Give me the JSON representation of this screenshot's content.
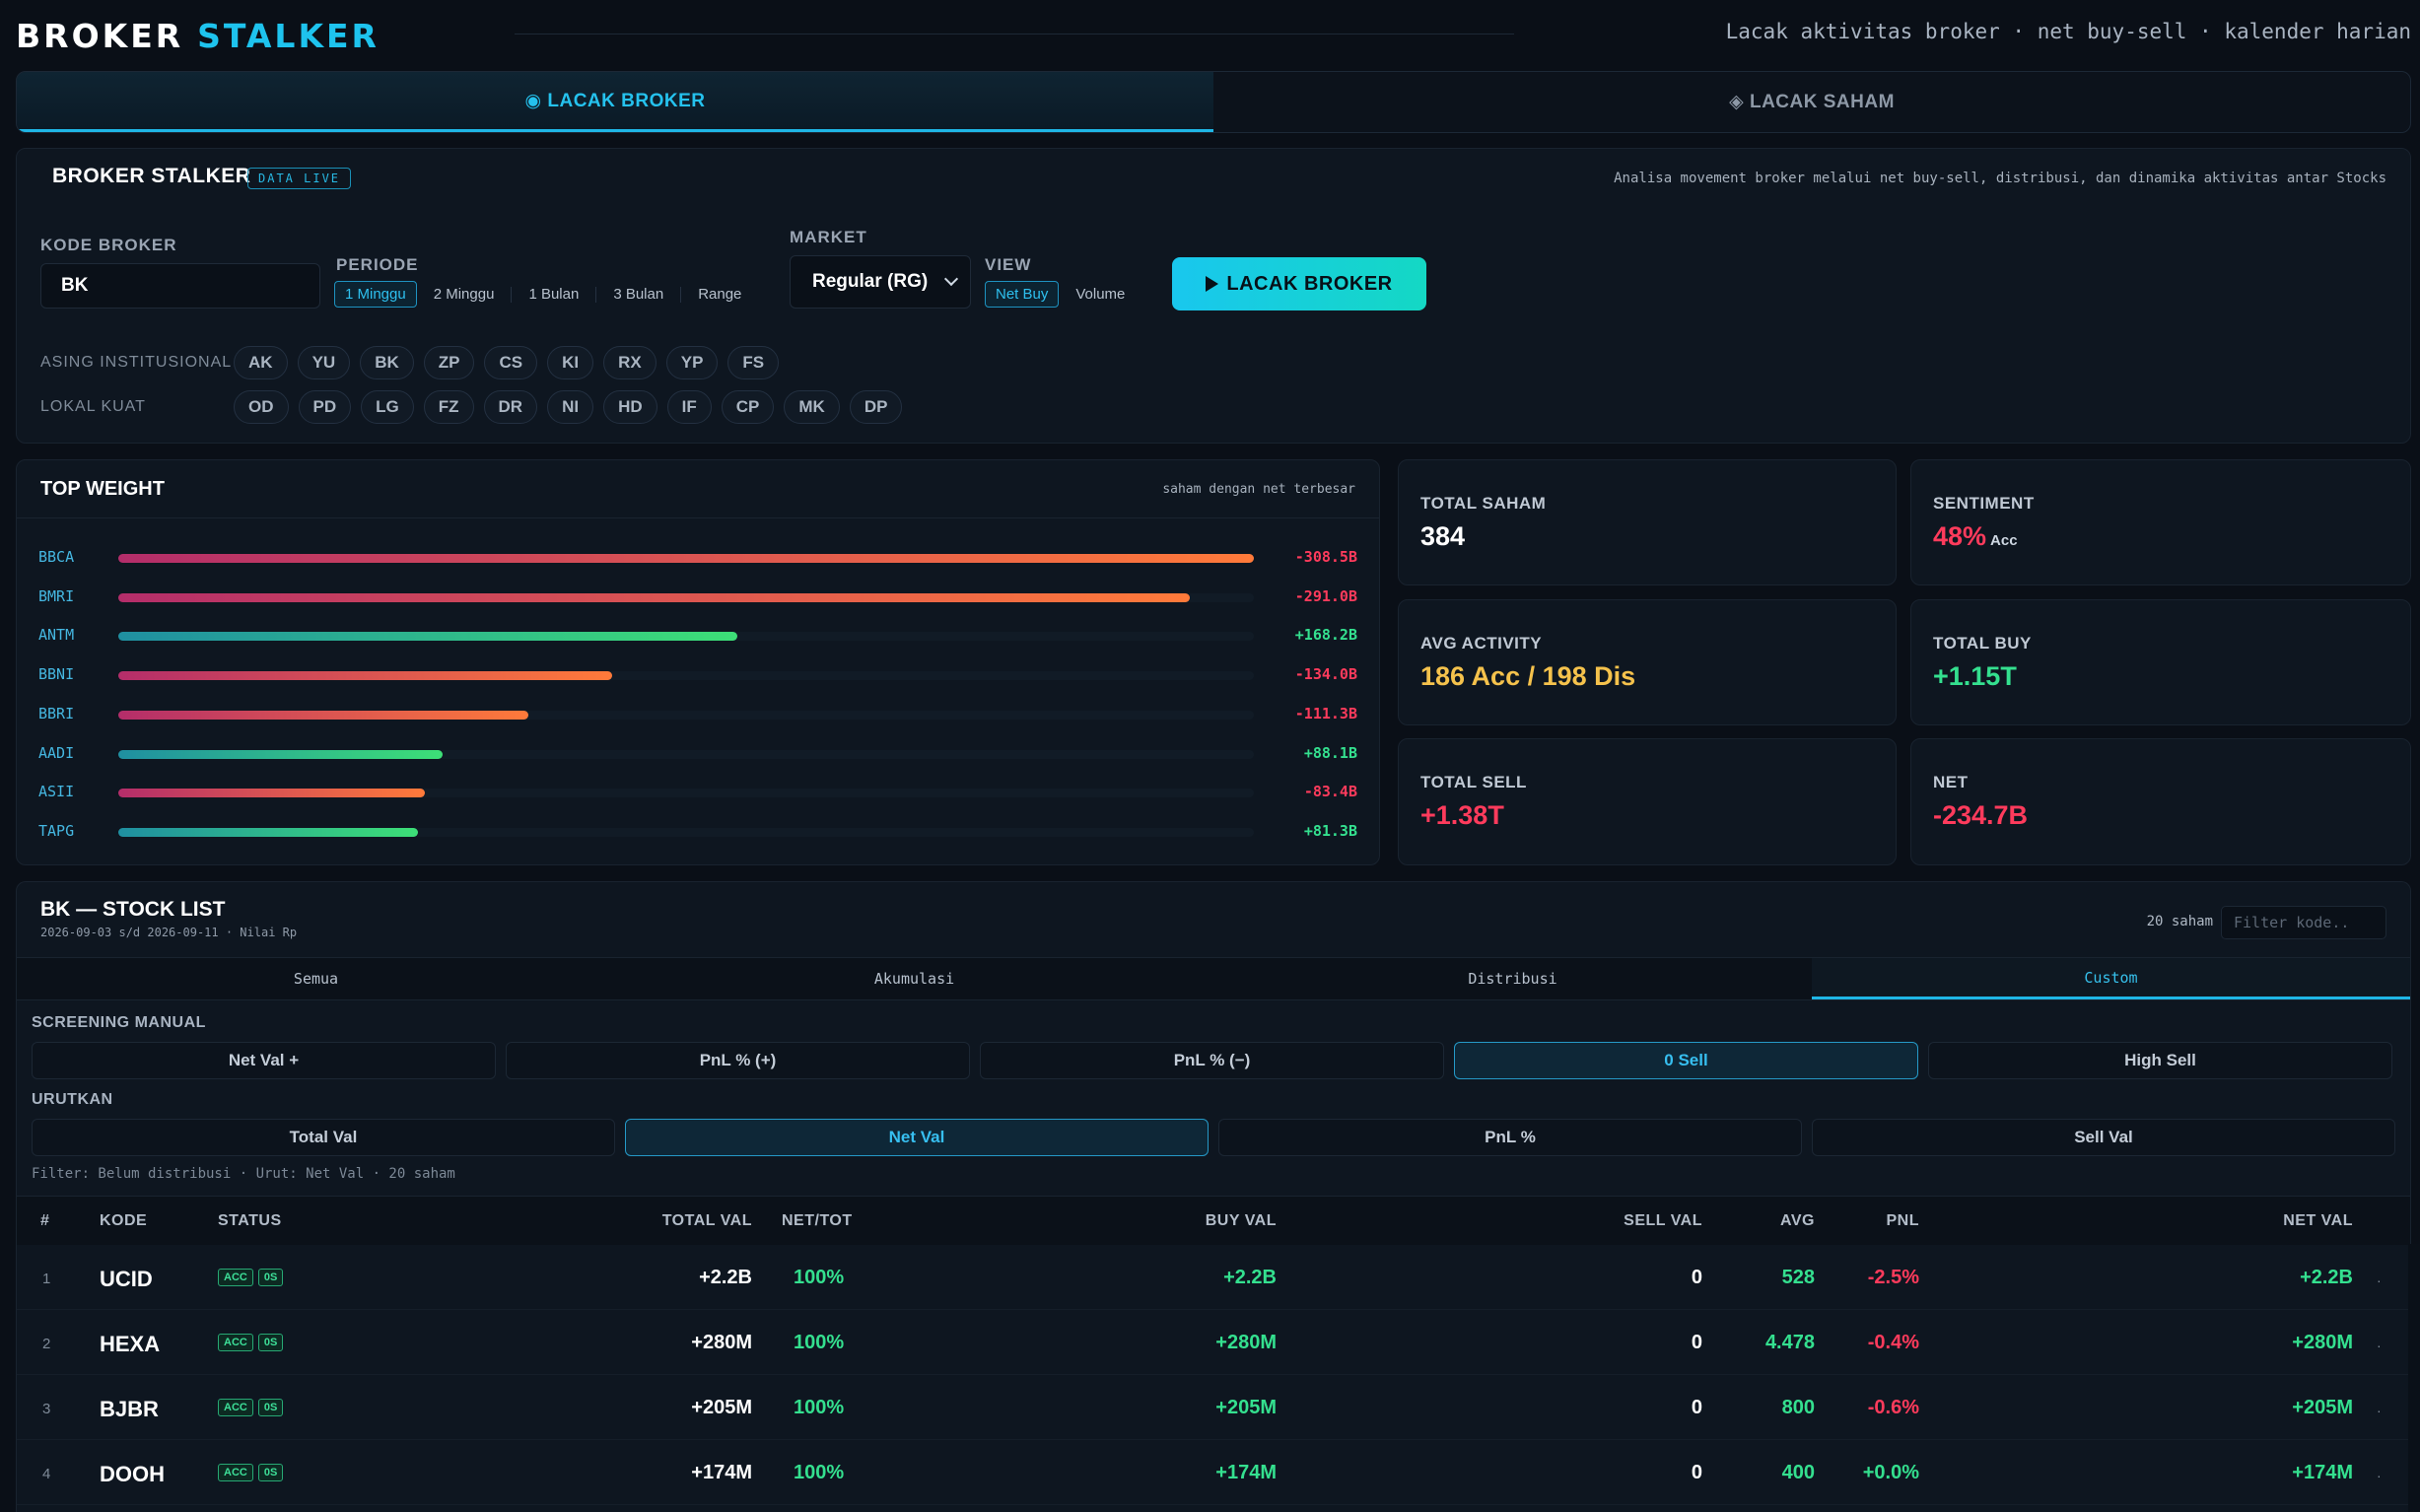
{
  "header": {
    "logo_part1": "BROKER",
    "logo_part2": "STALKER",
    "tagline": "Lacak aktivitas broker · net buy-sell · kalender harian"
  },
  "main_tabs": [
    {
      "label": "◉ LACAK BROKER",
      "active": true
    },
    {
      "label": "◈ LACAK SAHAM",
      "active": false
    }
  ],
  "broker_panel": {
    "title": "BROKER STALKER",
    "badge": "DATA LIVE",
    "description": "Analisa movement broker melalui net buy-sell, distribusi, dan dinamika aktivitas antar Stocks",
    "kode_label": "KODE BROKER",
    "kode_value": "BK",
    "periode_label": "PERIODE",
    "periode_options": [
      "1 Minggu",
      "2 Minggu",
      "1 Bulan",
      "3 Bulan",
      "Range"
    ],
    "periode_selected": "1 Minggu",
    "market_label": "MARKET",
    "market_value": "Regular (RG)",
    "view_label": "VIEW",
    "view_options": [
      "Net Buy",
      "Volume"
    ],
    "view_selected": "Net Buy",
    "cta_label": "LACAK BROKER",
    "asing_label": "ASING INSTITUSIONAL",
    "asing_chips": [
      "AK",
      "YU",
      "BK",
      "ZP",
      "CS",
      "KI",
      "RX",
      "YP",
      "FS"
    ],
    "lokal_label": "LOKAL KUAT",
    "lokal_chips": [
      "OD",
      "PD",
      "LG",
      "FZ",
      "DR",
      "NI",
      "HD",
      "IF",
      "CP",
      "MK",
      "DP"
    ]
  },
  "top_weight": {
    "title": "TOP WEIGHT",
    "subtitle": "saham dengan net terbesar",
    "items": [
      {
        "code": "BBCA",
        "value": "-308.5B",
        "fraction": 1.0,
        "sign": "neg"
      },
      {
        "code": "BMRI",
        "value": "-291.0B",
        "fraction": 0.944,
        "sign": "neg"
      },
      {
        "code": "ANTM",
        "value": "+168.2B",
        "fraction": 0.545,
        "sign": "pos"
      },
      {
        "code": "BBNI",
        "value": "-134.0B",
        "fraction": 0.435,
        "sign": "neg"
      },
      {
        "code": "BBRI",
        "value": "-111.3B",
        "fraction": 0.361,
        "sign": "neg"
      },
      {
        "code": "AADI",
        "value": "+88.1B",
        "fraction": 0.286,
        "sign": "pos"
      },
      {
        "code": "ASII",
        "value": "-83.4B",
        "fraction": 0.27,
        "sign": "neg"
      },
      {
        "code": "TAPG",
        "value": "+81.3B",
        "fraction": 0.264,
        "sign": "pos"
      }
    ]
  },
  "stats": {
    "total_saham_label": "TOTAL SAHAM",
    "total_saham_value": "384",
    "sentiment_label": "SENTIMENT",
    "sentiment_value": "48%",
    "sentiment_sub": "Acc",
    "avg_activity_label": "AVG ACTIVITY",
    "avg_activity_value": "186 Acc / 198 Dis",
    "total_buy_label": "TOTAL BUY",
    "total_buy_value": "+1.15T",
    "total_sell_label": "TOTAL SELL",
    "total_sell_value": "+1.38T",
    "net_label": "NET",
    "net_value": "-234.7B"
  },
  "stock_list": {
    "title": "BK — STOCK LIST",
    "date_range": "2026-09-03 s/d 2026-09-11 · Nilai Rp",
    "count": "20 saham",
    "filter_placeholder": "Filter kode..",
    "tabs": [
      "Semua",
      "Akumulasi",
      "Distribusi",
      "Custom"
    ],
    "active_tab": "Custom",
    "screening_label": "SCREENING MANUAL",
    "screening_options": [
      "Net Val +",
      "PnL % (+)",
      "PnL % (−)",
      "0 Sell",
      "High Sell"
    ],
    "screening_selected": "0 Sell",
    "sort_label": "URUTKAN",
    "sort_options": [
      "Total Val",
      "Net Val",
      "PnL %",
      "Sell Val"
    ],
    "sort_selected": "Net Val",
    "filter_note": "Filter: Belum distribusi · Urut: Net Val · 20 saham",
    "columns": {
      "no": "#",
      "kode": "KODE",
      "status": "STATUS",
      "total_val": "TOTAL VAL",
      "net_tot": "NET/TOT",
      "buy_val": "BUY VAL",
      "sell_val": "SELL VAL",
      "avg": "AVG",
      "pnl": "PNL",
      "net_val": "NET VAL"
    },
    "rows": [
      {
        "no": "1",
        "kode": "UCID",
        "badges": [
          "ACC",
          "0S"
        ],
        "total_val": "+2.2B",
        "net_tot": "100%",
        "buy_val": "+2.2B",
        "sell_val": "0",
        "avg": "528",
        "pnl": "-2.5%",
        "pnl_sign": "neg",
        "net_val": "+2.2B"
      },
      {
        "no": "2",
        "kode": "HEXA",
        "badges": [
          "ACC",
          "0S"
        ],
        "total_val": "+280M",
        "net_tot": "100%",
        "buy_val": "+280M",
        "sell_val": "0",
        "avg": "4.478",
        "pnl": "-0.4%",
        "pnl_sign": "neg",
        "net_val": "+280M"
      },
      {
        "no": "3",
        "kode": "BJBR",
        "badges": [
          "ACC",
          "0S"
        ],
        "total_val": "+205M",
        "net_tot": "100%",
        "buy_val": "+205M",
        "sell_val": "0",
        "avg": "800",
        "pnl": "-0.6%",
        "pnl_sign": "neg",
        "net_val": "+205M"
      },
      {
        "no": "4",
        "kode": "DOOH",
        "badges": [
          "ACC",
          "0S"
        ],
        "total_val": "+174M",
        "net_tot": "100%",
        "buy_val": "+174M",
        "sell_val": "0",
        "avg": "400",
        "pnl": "+0.0%",
        "pnl_sign": "pos",
        "net_val": "+174M"
      }
    ]
  }
}
